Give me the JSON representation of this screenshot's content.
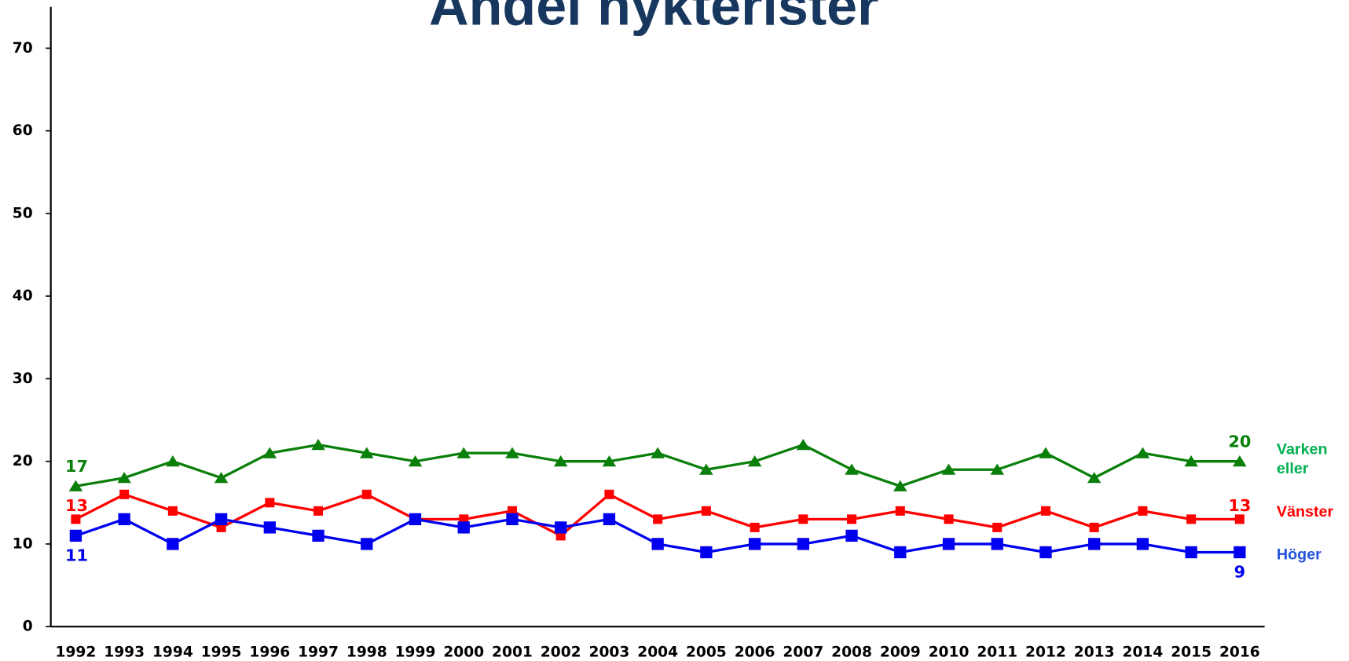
{
  "chart_data": {
    "type": "line",
    "title": "Andel nykterister",
    "categories": [
      "1992",
      "1993",
      "1994",
      "1995",
      "1996",
      "1997",
      "1998",
      "1999",
      "2000",
      "2001",
      "2002",
      "2003",
      "2004",
      "2005",
      "2006",
      "2007",
      "2008",
      "2009",
      "2010",
      "2011",
      "2012",
      "2013",
      "2014",
      "2015",
      "2016"
    ],
    "series": [
      {
        "name": "Varken eller",
        "color": "#0a7f0a",
        "label_color": "#00b050",
        "marker": "triangle",
        "values": [
          17,
          18,
          20,
          18,
          21,
          22,
          21,
          20,
          21,
          21,
          20,
          20,
          21,
          19,
          20,
          22,
          19,
          17,
          19,
          19,
          21,
          18,
          21,
          20,
          20
        ]
      },
      {
        "name": "Vänster",
        "color": "#ff0000",
        "label_color": "#ff0000",
        "marker": "square",
        "values": [
          13,
          16,
          14,
          12,
          15,
          14,
          16,
          13,
          13,
          14,
          11,
          16,
          13,
          14,
          12,
          13,
          13,
          14,
          13,
          12,
          14,
          12,
          14,
          13,
          13
        ]
      },
      {
        "name": "Höger",
        "color": "#0000ee",
        "label_color": "#2255dd",
        "marker": "square",
        "values": [
          11,
          13,
          10,
          13,
          12,
          11,
          10,
          13,
          12,
          13,
          12,
          13,
          10,
          9,
          10,
          10,
          11,
          9,
          10,
          10,
          9,
          10,
          10,
          9,
          9
        ]
      }
    ],
    "ylim": [
      0,
      75
    ],
    "yticks": [
      0,
      10,
      20,
      30,
      40,
      50,
      60,
      70
    ],
    "grid": false
  }
}
